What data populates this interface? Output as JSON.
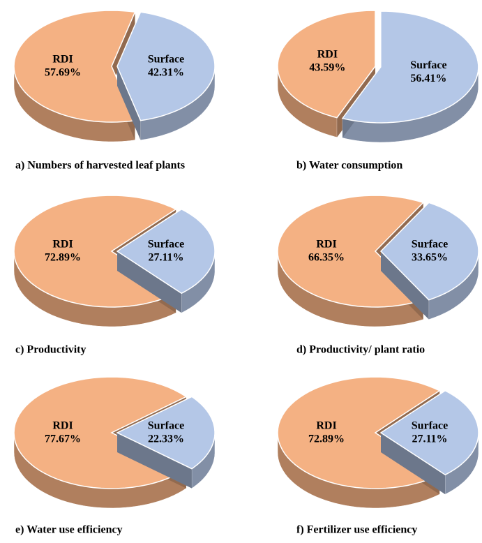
{
  "chart_data": [
    {
      "type": "pie",
      "title": "a) Numbers of harvested leaf plants",
      "categories": [
        "RDI",
        "Surface"
      ],
      "values": [
        57.69,
        42.31
      ],
      "value_labels": [
        "57.69%",
        "42.31%"
      ],
      "colors": [
        "#f4b183",
        "#b4c7e7"
      ]
    },
    {
      "type": "pie",
      "title": "b) Water consumption",
      "categories": [
        "RDI",
        "Surface"
      ],
      "values": [
        43.59,
        56.41
      ],
      "value_labels": [
        "43.59%",
        "56.41%"
      ],
      "colors": [
        "#f4b183",
        "#b4c7e7"
      ]
    },
    {
      "type": "pie",
      "title": "c) Productivity",
      "categories": [
        "RDI",
        "Surface"
      ],
      "values": [
        72.89,
        27.11
      ],
      "value_labels": [
        "72.89%",
        "27.11%"
      ],
      "colors": [
        "#f4b183",
        "#b4c7e7"
      ]
    },
    {
      "type": "pie",
      "title": "d) Productivity/ plant ratio",
      "categories": [
        "RDI",
        "Surface"
      ],
      "values": [
        66.35,
        33.65
      ],
      "value_labels": [
        "66.35%",
        "33.65%"
      ],
      "colors": [
        "#f4b183",
        "#b4c7e7"
      ]
    },
    {
      "type": "pie",
      "title": "e) Water use efficiency",
      "categories": [
        "RDI",
        "Surface"
      ],
      "values": [
        77.67,
        22.33
      ],
      "value_labels": [
        "77.67%",
        "22.33%"
      ],
      "colors": [
        "#f4b183",
        "#b4c7e7"
      ]
    },
    {
      "type": "pie",
      "title": "f) Fertilizer use efficiency",
      "categories": [
        "RDI",
        "Surface"
      ],
      "values": [
        72.89,
        27.11
      ],
      "value_labels": [
        "72.89%",
        "27.11%"
      ],
      "colors": [
        "#f4b183",
        "#b4c7e7"
      ]
    }
  ]
}
